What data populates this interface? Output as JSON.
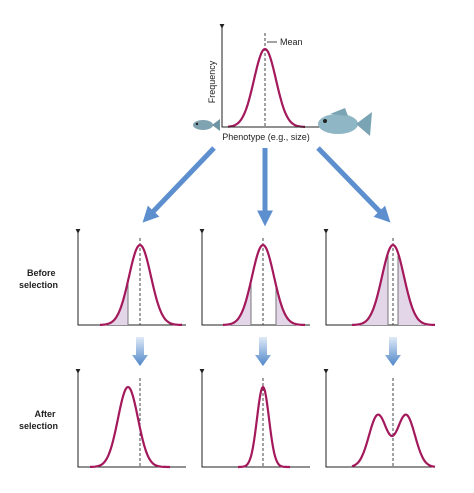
{
  "top_graph": {
    "mean_label": "Mean",
    "y_label": "Frequency",
    "x_label": "Phenotype (e.g., size)"
  },
  "row_labels": {
    "before": [
      "Before",
      "selection"
    ],
    "after": [
      "After",
      "selection"
    ]
  }
}
